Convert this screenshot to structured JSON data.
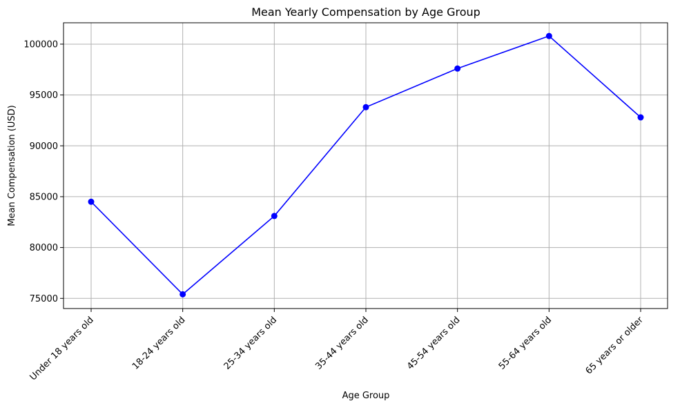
{
  "chart_data": {
    "type": "line",
    "title": "Mean Yearly Compensation by Age Group",
    "xlabel": "Age Group",
    "ylabel": "Mean Compensation (USD)",
    "categories": [
      "Under 18 years old",
      "18-24 years old",
      "25-34 years old",
      "35-44 years old",
      "45-54 years old",
      "55-64 years old",
      "65 years or older"
    ],
    "series": [
      {
        "values": [
          84500,
          75400,
          83100,
          93800,
          97600,
          100800,
          92800
        ],
        "color": "#0000ff",
        "marker": "circle"
      }
    ],
    "ylim": [
      74000,
      102100
    ],
    "yticks": [
      75000,
      80000,
      85000,
      90000,
      95000,
      100000
    ],
    "grid": true,
    "legend": "none"
  }
}
